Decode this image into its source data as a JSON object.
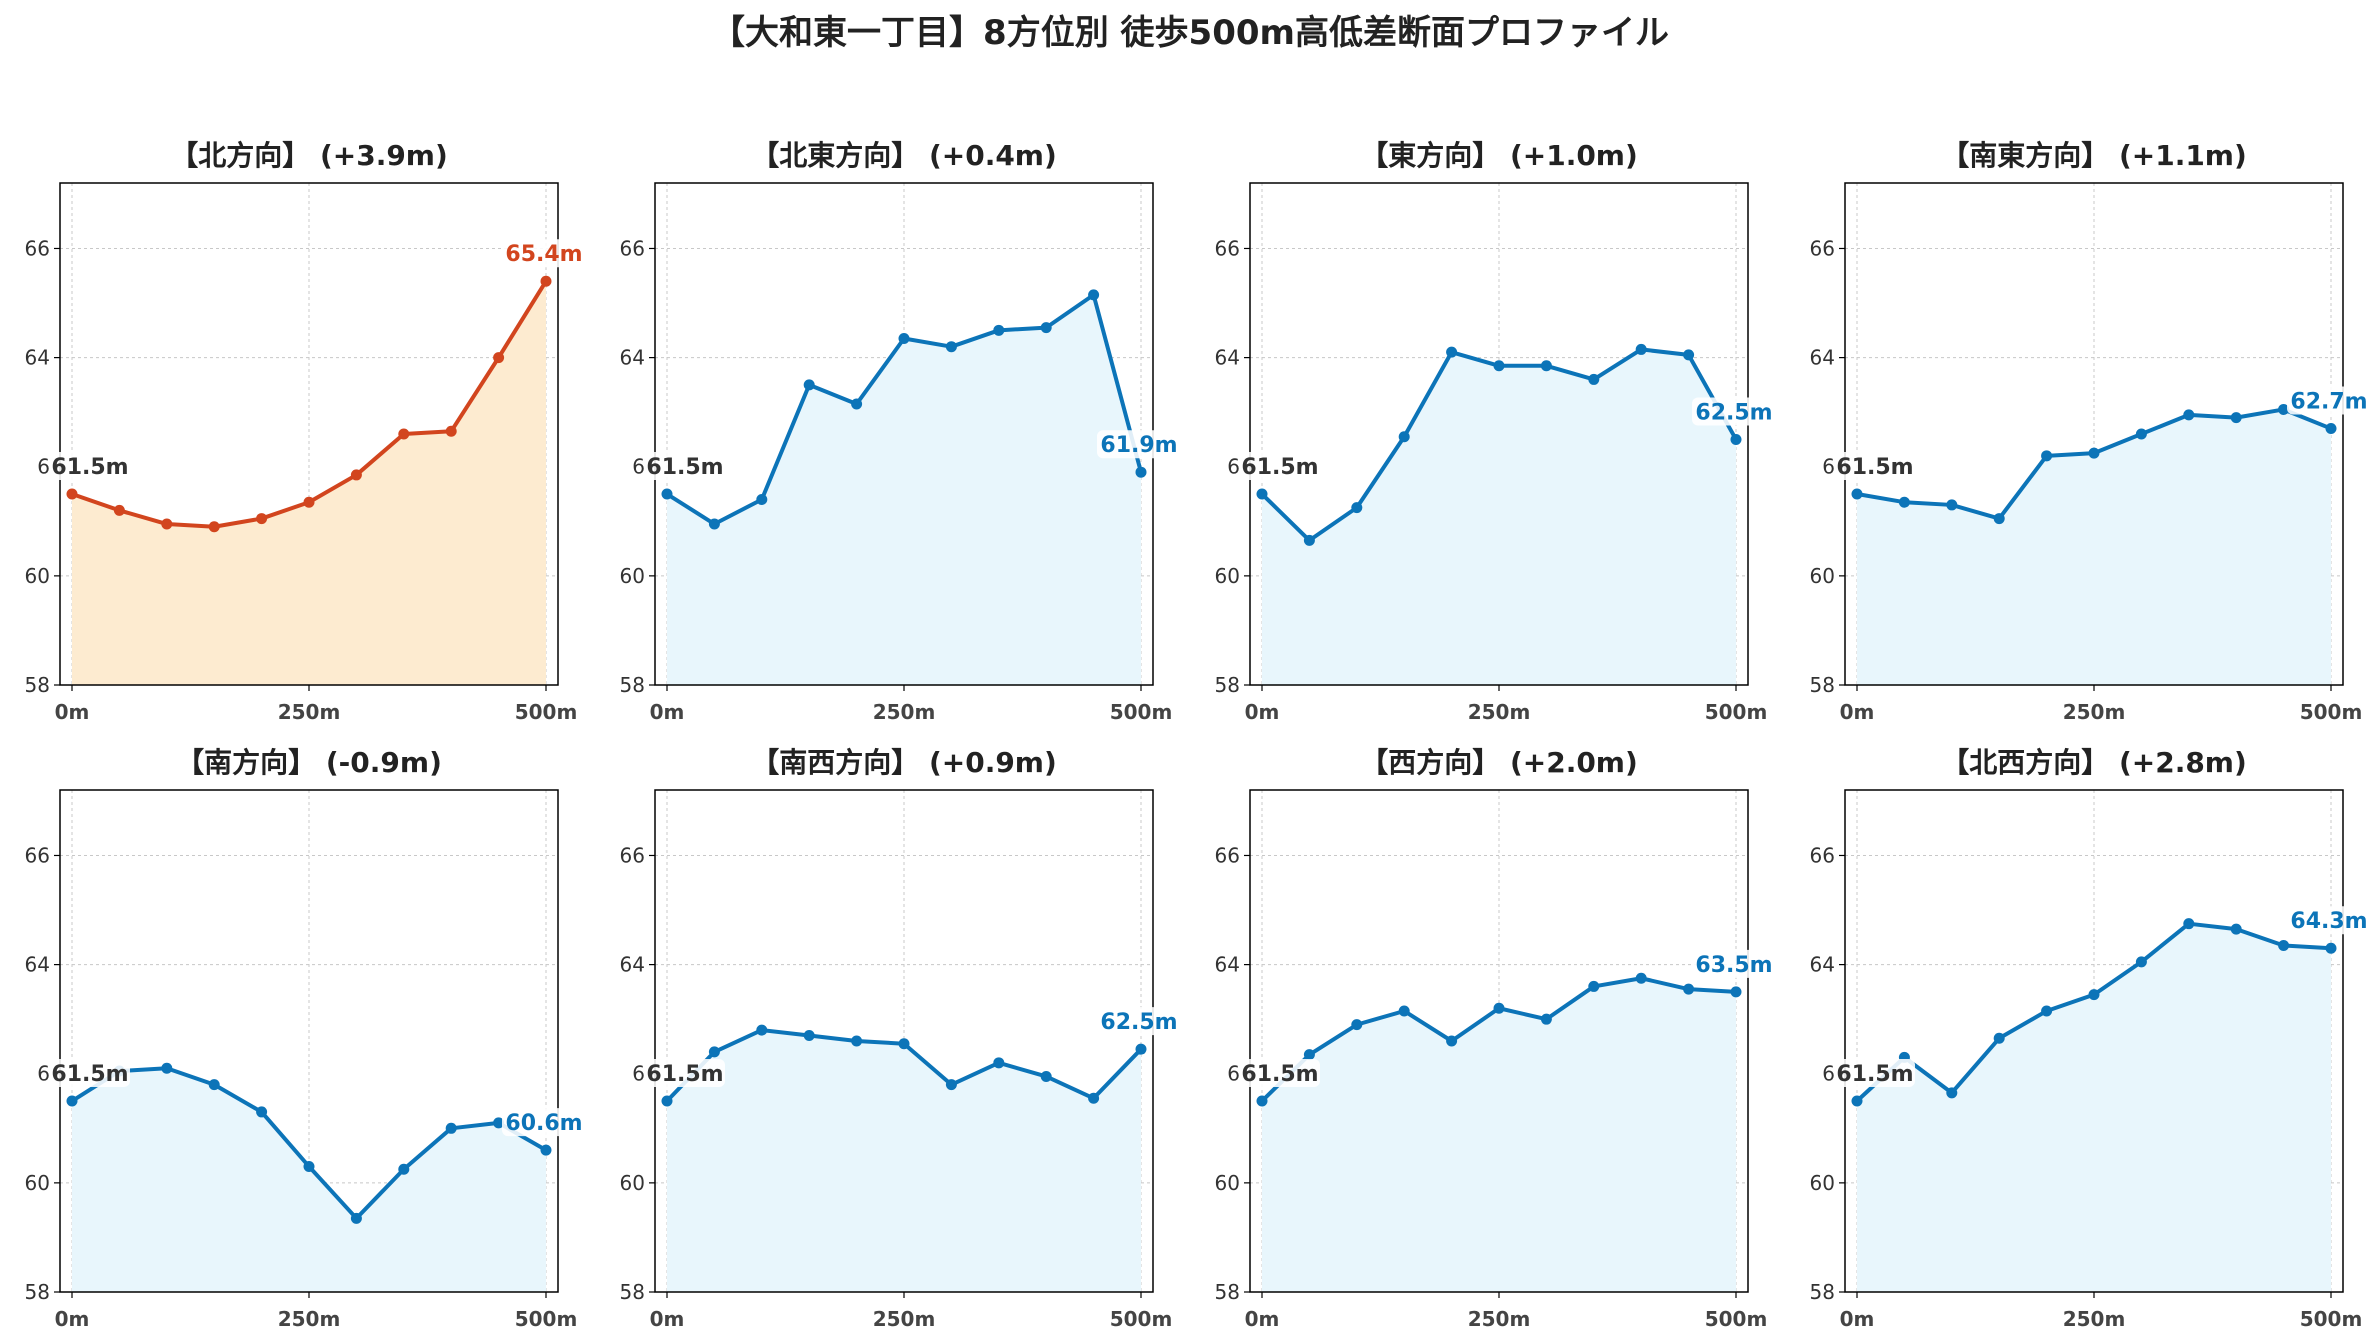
{
  "title": "【大和東一丁目】8方位別 徒歩500m高低差断面プロファイル",
  "colors": {
    "up_line": "#d2451e",
    "up_fill": "#fdebd0",
    "line": "#0c74b8",
    "fill": "#e8f6fc",
    "start_label": "#333333",
    "grid": "#c8c8c8"
  },
  "chart_data": [
    {
      "type": "area",
      "title": "【北方向】 (+3.9m)",
      "highlight": true,
      "x": [
        0,
        50,
        100,
        150,
        200,
        250,
        300,
        350,
        400,
        450,
        500
      ],
      "series": [
        {
          "values": [
            61.5,
            61.2,
            60.95,
            60.9,
            61.05,
            61.35,
            61.85,
            62.6,
            62.65,
            64.0,
            65.4
          ]
        }
      ],
      "start_label": "61.5m",
      "end_label": "65.4m",
      "ylim": [
        58,
        67.2
      ],
      "yticks": [
        58,
        60,
        64,
        66
      ],
      "xlim": [
        0,
        500
      ],
      "xticks": [
        "0m",
        "250m",
        "500m"
      ],
      "grid": true
    },
    {
      "type": "area",
      "title": "【北東方向】 (+0.4m)",
      "highlight": false,
      "x": [
        0,
        50,
        100,
        150,
        200,
        250,
        300,
        350,
        400,
        450,
        500
      ],
      "series": [
        {
          "values": [
            61.5,
            60.95,
            61.4,
            63.5,
            63.15,
            64.35,
            64.2,
            64.5,
            64.55,
            65.15,
            61.9
          ]
        }
      ],
      "start_label": "61.5m",
      "end_label": "61.9m",
      "ylim": [
        58,
        67.2
      ],
      "yticks": [
        58,
        60,
        64,
        66
      ],
      "xlim": [
        0,
        500
      ],
      "xticks": [
        "0m",
        "250m",
        "500m"
      ],
      "grid": true
    },
    {
      "type": "area",
      "title": "【東方向】 (+1.0m)",
      "highlight": false,
      "x": [
        0,
        50,
        100,
        150,
        200,
        250,
        300,
        350,
        400,
        450,
        500
      ],
      "series": [
        {
          "values": [
            61.5,
            60.65,
            61.25,
            62.55,
            64.1,
            63.85,
            63.85,
            63.6,
            64.15,
            64.05,
            62.5
          ]
        }
      ],
      "start_label": "61.5m",
      "end_label": "62.5m",
      "ylim": [
        58,
        67.2
      ],
      "yticks": [
        58,
        60,
        64,
        66
      ],
      "xlim": [
        0,
        500
      ],
      "xticks": [
        "0m",
        "250m",
        "500m"
      ],
      "grid": true
    },
    {
      "type": "area",
      "title": "【南東方向】 (+1.1m)",
      "highlight": false,
      "x": [
        0,
        50,
        100,
        150,
        200,
        250,
        300,
        350,
        400,
        450,
        500
      ],
      "series": [
        {
          "values": [
            61.5,
            61.35,
            61.3,
            61.05,
            62.2,
            62.25,
            62.6,
            62.95,
            62.9,
            63.05,
            62.7
          ]
        }
      ],
      "start_label": "61.5m",
      "end_label": "62.7m",
      "ylim": [
        58,
        67.2
      ],
      "yticks": [
        58,
        60,
        64,
        66
      ],
      "xlim": [
        0,
        500
      ],
      "xticks": [
        "0m",
        "250m",
        "500m"
      ],
      "grid": true
    },
    {
      "type": "area",
      "title": "【南方向】 (-0.9m)",
      "highlight": false,
      "x": [
        0,
        50,
        100,
        150,
        200,
        250,
        300,
        350,
        400,
        450,
        500
      ],
      "series": [
        {
          "values": [
            61.5,
            62.05,
            62.1,
            61.8,
            61.3,
            60.3,
            59.35,
            60.25,
            61.0,
            61.1,
            60.6
          ]
        }
      ],
      "start_label": "61.5m",
      "end_label": "60.6m",
      "ylim": [
        58,
        67.2
      ],
      "yticks": [
        58,
        60,
        64,
        66
      ],
      "xlim": [
        0,
        500
      ],
      "xticks": [
        "0m",
        "250m",
        "500m"
      ],
      "grid": true
    },
    {
      "type": "area",
      "title": "【南西方向】 (+0.9m)",
      "highlight": false,
      "x": [
        0,
        50,
        100,
        150,
        200,
        250,
        300,
        350,
        400,
        450,
        500
      ],
      "series": [
        {
          "values": [
            61.5,
            62.4,
            62.8,
            62.7,
            62.6,
            62.55,
            61.8,
            62.2,
            61.95,
            61.55,
            62.45
          ]
        }
      ],
      "start_label": "61.5m",
      "end_label": "62.5m",
      "ylim": [
        58,
        67.2
      ],
      "yticks": [
        58,
        60,
        64,
        66
      ],
      "xlim": [
        0,
        500
      ],
      "xticks": [
        "0m",
        "250m",
        "500m"
      ],
      "grid": true
    },
    {
      "type": "area",
      "title": "【西方向】 (+2.0m)",
      "highlight": false,
      "x": [
        0,
        50,
        100,
        150,
        200,
        250,
        300,
        350,
        400,
        450,
        500
      ],
      "series": [
        {
          "values": [
            61.5,
            62.35,
            62.9,
            63.15,
            62.6,
            63.2,
            63.0,
            63.6,
            63.75,
            63.55,
            63.5
          ]
        }
      ],
      "start_label": "61.5m",
      "end_label": "63.5m",
      "ylim": [
        58,
        67.2
      ],
      "yticks": [
        58,
        60,
        64,
        66
      ],
      "xlim": [
        0,
        500
      ],
      "xticks": [
        "0m",
        "250m",
        "500m"
      ],
      "grid": true
    },
    {
      "type": "area",
      "title": "【北西方向】 (+2.8m)",
      "highlight": false,
      "x": [
        0,
        50,
        100,
        150,
        200,
        250,
        300,
        350,
        400,
        450,
        500
      ],
      "series": [
        {
          "values": [
            61.5,
            62.3,
            61.65,
            62.65,
            63.15,
            63.45,
            64.05,
            64.75,
            64.65,
            64.35,
            64.3
          ]
        }
      ],
      "start_label": "61.5m",
      "end_label": "64.3m",
      "ylim": [
        58,
        67.2
      ],
      "yticks": [
        58,
        60,
        64,
        66
      ],
      "xlim": [
        0,
        500
      ],
      "xticks": [
        "0m",
        "250m",
        "500m"
      ],
      "grid": true
    }
  ]
}
